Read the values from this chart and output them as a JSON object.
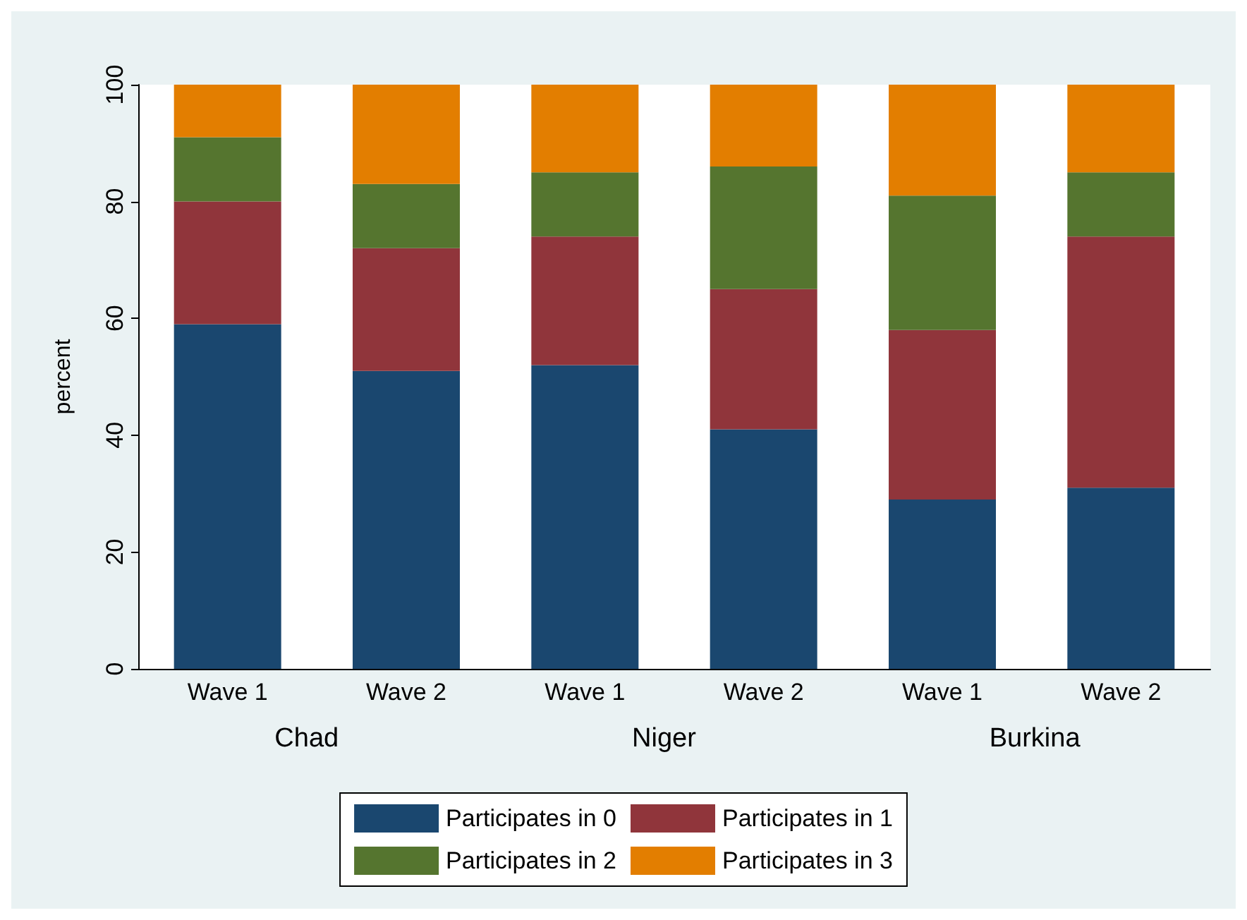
{
  "chart_data": {
    "type": "bar",
    "stacked": true,
    "categories": [
      "Wave 1",
      "Wave 2",
      "Wave 1",
      "Wave 2",
      "Wave 1",
      "Wave 2"
    ],
    "annotations": [
      "Chad",
      "Niger",
      "Burkina"
    ],
    "ylabel": "percent",
    "ylim": [
      0,
      100
    ],
    "yticks": [
      0,
      20,
      40,
      60,
      80,
      100
    ],
    "grid": false,
    "legend": "bottom",
    "series": [
      {
        "name": "Participates in 0",
        "color": "#1a476f",
        "values": [
          59,
          51,
          52,
          41,
          29,
          31
        ]
      },
      {
        "name": "Participates in 1",
        "color": "#90353b",
        "values": [
          21,
          21,
          22,
          24,
          29,
          43
        ]
      },
      {
        "name": "Participates in 2",
        "color": "#55752f",
        "values": [
          11,
          11,
          11,
          21,
          23,
          11
        ]
      },
      {
        "name": "Participates in 3",
        "color": "#e37e00",
        "values": [
          9,
          17,
          15,
          14,
          19,
          15
        ]
      }
    ]
  }
}
